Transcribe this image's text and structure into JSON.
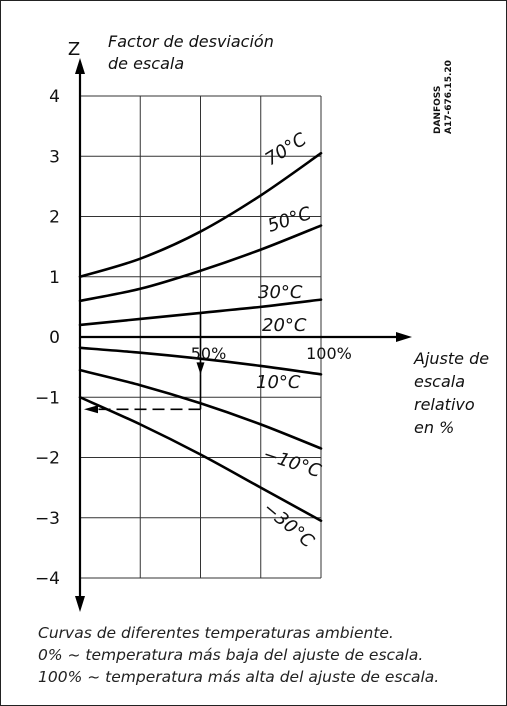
{
  "chart_data": {
    "type": "line",
    "title": "",
    "ylabel": "Z",
    "ylabel_description": [
      "Factor de desviación",
      "de escala"
    ],
    "xlabel": [
      "Ajuste de",
      "escala",
      "relativo",
      "en %"
    ],
    "ylim": [
      -4,
      4
    ],
    "xlim": [
      0,
      100
    ],
    "y_ticks": [
      {
        "value": 4,
        "label": "4"
      },
      {
        "value": 3,
        "label": "3"
      },
      {
        "value": 2,
        "label": "2"
      },
      {
        "value": 1,
        "label": "1"
      },
      {
        "value": 0,
        "label": "0"
      },
      {
        "value": -1,
        "label": "−1"
      },
      {
        "value": -2,
        "label": "−2"
      },
      {
        "value": -3,
        "label": "−3"
      },
      {
        "value": -4,
        "label": "−4"
      }
    ],
    "x_ticks": [
      {
        "value": 50,
        "label": "50%"
      },
      {
        "value": 100,
        "label": "100%"
      }
    ],
    "grid": true,
    "series": [
      {
        "name": "70°C",
        "x": [
          0,
          25,
          50,
          75,
          100
        ],
        "y": [
          1.0,
          1.3,
          1.75,
          2.35,
          3.05
        ]
      },
      {
        "name": "50°C",
        "x": [
          0,
          25,
          50,
          75,
          100
        ],
        "y": [
          0.6,
          0.8,
          1.1,
          1.45,
          1.85
        ]
      },
      {
        "name": "30°C",
        "x": [
          0,
          25,
          50,
          75,
          100
        ],
        "y": [
          0.2,
          0.3,
          0.4,
          0.5,
          0.62
        ]
      },
      {
        "name": "20°C",
        "x": [
          0,
          100
        ],
        "y": [
          0,
          0
        ]
      },
      {
        "name": "10°C",
        "x": [
          0,
          25,
          50,
          75,
          100
        ],
        "y": [
          -0.18,
          -0.26,
          -0.36,
          -0.48,
          -0.62
        ]
      },
      {
        "name": "−10°C",
        "x": [
          0,
          25,
          50,
          75,
          100
        ],
        "y": [
          -0.55,
          -0.8,
          -1.1,
          -1.45,
          -1.85
        ]
      },
      {
        "name": "−30°C",
        "x": [
          0,
          25,
          50,
          75,
          100
        ],
        "y": [
          -1.0,
          -1.45,
          -1.95,
          -2.5,
          -3.05
        ]
      }
    ],
    "annotation": {
      "x": 50,
      "y_start": 0.4,
      "y_end": -1.2
    },
    "watermark": [
      "DANFOSS",
      "A17-676.15.20"
    ]
  },
  "caption": [
    "Curvas de diferentes temperaturas ambiente.",
    "0% ~ temperatura más baja del ajuste de escala.",
    "100% ~ temperatura más alta del ajuste de escala."
  ]
}
